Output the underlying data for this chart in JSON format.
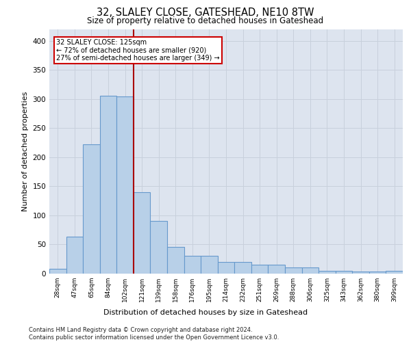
{
  "title": "32, SLALEY CLOSE, GATESHEAD, NE10 8TW",
  "subtitle": "Size of property relative to detached houses in Gateshead",
  "xlabel": "Distribution of detached houses by size in Gateshead",
  "ylabel": "Number of detached properties",
  "bar_values": [
    8,
    63,
    222,
    305,
    304,
    140,
    90,
    46,
    30,
    30,
    20,
    20,
    15,
    15,
    11,
    10,
    5,
    5,
    4,
    3,
    5
  ],
  "categories": [
    "28sqm",
    "47sqm",
    "65sqm",
    "84sqm",
    "102sqm",
    "121sqm",
    "139sqm",
    "158sqm",
    "176sqm",
    "195sqm",
    "214sqm",
    "232sqm",
    "251sqm",
    "269sqm",
    "288sqm",
    "306sqm",
    "325sqm",
    "343sqm",
    "362sqm",
    "380sqm",
    "399sqm"
  ],
  "bar_color": "#b8d0e8",
  "bar_edge_color": "#6699cc",
  "vline_index": 5,
  "vline_color": "#aa0000",
  "annotation_text": "32 SLALEY CLOSE: 125sqm\n← 72% of detached houses are smaller (920)\n27% of semi-detached houses are larger (349) →",
  "annotation_box_color": "#cc0000",
  "ylim": [
    0,
    420
  ],
  "yticks": [
    0,
    50,
    100,
    150,
    200,
    250,
    300,
    350,
    400
  ],
  "grid_color": "#c8d0dc",
  "background_color": "#dde4ef",
  "footnote": "Contains HM Land Registry data © Crown copyright and database right 2024.\nContains public sector information licensed under the Open Government Licence v3.0."
}
